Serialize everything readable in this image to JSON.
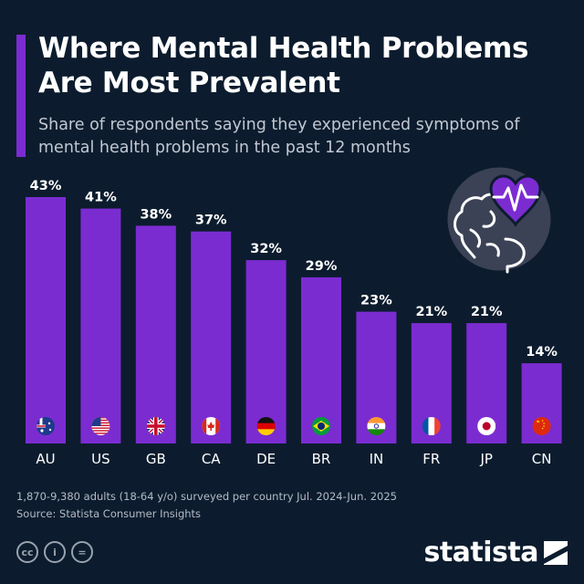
{
  "header": {
    "title": "Where Mental Health Problems Are Most Prevalent",
    "subtitle": "Share of respondents saying they experienced symptoms of mental health problems in the past 12 months"
  },
  "colors": {
    "background": "#0c1c2e",
    "bar": "#7b2cd1",
    "accent": "#7b2cd1"
  },
  "chart_data": {
    "type": "bar",
    "categories": [
      "AU",
      "US",
      "GB",
      "CA",
      "DE",
      "BR",
      "IN",
      "FR",
      "JP",
      "CN"
    ],
    "values": [
      43,
      41,
      38,
      37,
      32,
      29,
      23,
      21,
      21,
      14
    ],
    "value_labels": [
      "43%",
      "41%",
      "38%",
      "37%",
      "32%",
      "29%",
      "23%",
      "21%",
      "21%",
      "14%"
    ],
    "flag_icons": [
      "australia-flag-icon",
      "usa-flag-icon",
      "uk-flag-icon",
      "canada-flag-icon",
      "germany-flag-icon",
      "brazil-flag-icon",
      "india-flag-icon",
      "france-flag-icon",
      "japan-flag-icon",
      "china-flag-icon"
    ],
    "unit": "%",
    "ylim": [
      0,
      43
    ],
    "grid": false,
    "legend": "none"
  },
  "illustration": {
    "icon": "brain-heart-pulse-icon"
  },
  "footer": {
    "note": "1,870-9,380 adults (18-64 y/o) surveyed per country Jul. 2024-Jun. 2025",
    "source": "Source: Statista Consumer Insights",
    "license_icons": [
      "cc-icon",
      "by-icon",
      "nd-icon"
    ],
    "license_glyphs": [
      "cc",
      "i",
      "="
    ],
    "brand": "statista"
  }
}
